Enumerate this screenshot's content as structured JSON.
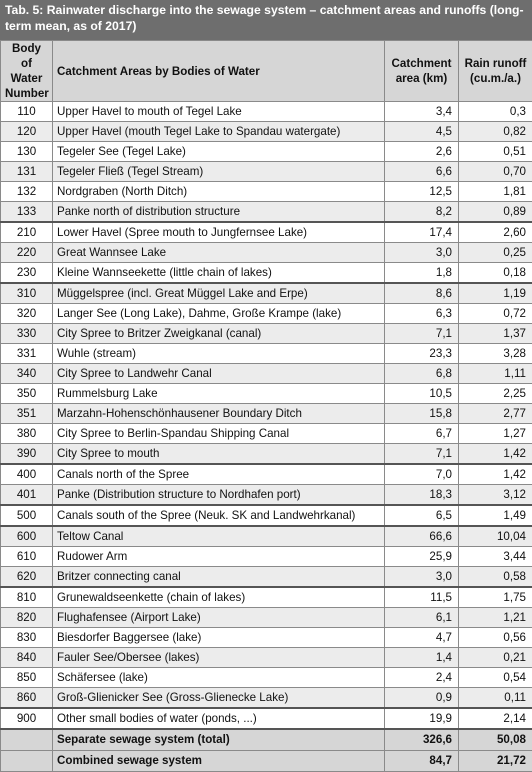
{
  "title": "Tab. 5: Rainwater discharge into the sewage system – catchment areas and runoffs (long-term mean, as of 2017)",
  "headers": {
    "number": "Body of Water Number",
    "name": "Catchment Areas by Bodies of Water",
    "area": "Catchment area (km)",
    "runoff": "Rain runoff (cu.m./a.)"
  },
  "rows": [
    {
      "num": "110",
      "name": "Upper Havel to mouth of Tegel Lake",
      "area": "3,4",
      "runoff": "0,3"
    },
    {
      "num": "120",
      "name": "Upper Havel (mouth Tegel Lake to Spandau watergate)",
      "area": "4,5",
      "runoff": "0,82"
    },
    {
      "num": "130",
      "name": "Tegeler See (Tegel Lake)",
      "area": "2,6",
      "runoff": "0,51"
    },
    {
      "num": "131",
      "name": "Tegeler Fließ (Tegel Stream)",
      "area": "6,6",
      "runoff": "0,70"
    },
    {
      "num": "132",
      "name": "Nordgraben (North Ditch)",
      "area": "12,5",
      "runoff": "1,81"
    },
    {
      "num": "133",
      "name": "Panke north of distribution structure",
      "area": "8,2",
      "runoff": "0,89"
    },
    {
      "num": "210",
      "name": "Lower Havel (Spree mouth to Jungfernsee Lake)",
      "area": "17,4",
      "runoff": "2,60"
    },
    {
      "num": "220",
      "name": "Great Wannsee Lake",
      "area": "3,0",
      "runoff": "0,25"
    },
    {
      "num": "230",
      "name": "Kleine Wannseekette (little chain of lakes)",
      "area": "1,8",
      "runoff": "0,18"
    },
    {
      "num": "310",
      "name": "Müggelspree (incl. Great Müggel Lake and Erpe)",
      "area": "8,6",
      "runoff": "1,19"
    },
    {
      "num": "320",
      "name": "Langer See (Long Lake), Dahme, Große Krampe (lake)",
      "area": "6,3",
      "runoff": "0,72"
    },
    {
      "num": "330",
      "name": "City Spree to Britzer Zweigkanal (canal)",
      "area": "7,1",
      "runoff": "1,37"
    },
    {
      "num": "331",
      "name": "Wuhle (stream)",
      "area": "23,3",
      "runoff": "3,28"
    },
    {
      "num": "340",
      "name": "City Spree to Landwehr Canal",
      "area": "6,8",
      "runoff": "1,11"
    },
    {
      "num": "350",
      "name": "Rummelsburg Lake",
      "area": "10,5",
      "runoff": "2,25"
    },
    {
      "num": "351",
      "name": "Marzahn-Hohenschönhausener Boundary Ditch",
      "area": "15,8",
      "runoff": "2,77"
    },
    {
      "num": "380",
      "name": "City Spree to Berlin-Spandau Shipping Canal",
      "area": "6,7",
      "runoff": "1,27"
    },
    {
      "num": "390",
      "name": "City Spree to mouth",
      "area": "7,1",
      "runoff": "1,42"
    },
    {
      "num": "400",
      "name": "Canals north of the Spree",
      "area": "7,0",
      "runoff": "1,42"
    },
    {
      "num": "401",
      "name": "Panke (Distribution structure to Nordhafen port)",
      "area": "18,3",
      "runoff": "3,12"
    },
    {
      "num": "500",
      "name": "Canals south of the Spree (Neuk. SK and Landwehrkanal)",
      "area": "6,5",
      "runoff": "1,49"
    },
    {
      "num": "600",
      "name": "Teltow Canal",
      "area": "66,6",
      "runoff": "10,04"
    },
    {
      "num": "610",
      "name": "Rudower Arm",
      "area": "25,9",
      "runoff": "3,44"
    },
    {
      "num": "620",
      "name": "Britzer connecting canal",
      "area": "3,0",
      "runoff": "0,58"
    },
    {
      "num": "810",
      "name": "Grunewaldseenkette (chain of lakes)",
      "area": "11,5",
      "runoff": "1,75"
    },
    {
      "num": "820",
      "name": "Flughafensee (Airport Lake)",
      "area": "6,1",
      "runoff": "1,21"
    },
    {
      "num": "830",
      "name": "Biesdorfer Baggersee (lake)",
      "area": "4,7",
      "runoff": "0,56"
    },
    {
      "num": "840",
      "name": "Fauler See/Obersee (lakes)",
      "area": "1,4",
      "runoff": "0,21"
    },
    {
      "num": "850",
      "name": "Schäfersee (lake)",
      "area": "2,4",
      "runoff": "0,54"
    },
    {
      "num": "860",
      "name": "Groß-Glienicker See (Gross-Glienecke Lake)",
      "area": "0,9",
      "runoff": "0,11"
    },
    {
      "num": "900",
      "name": "Other small bodies of water (ponds, ...)",
      "area": "19,9",
      "runoff": "2,14"
    }
  ],
  "totals": [
    {
      "name": "Separate sewage system (total)",
      "area": "326,6",
      "runoff": "50,08"
    },
    {
      "name": "Combined sewage system",
      "area": "84,7",
      "runoff": "21,72"
    }
  ]
}
